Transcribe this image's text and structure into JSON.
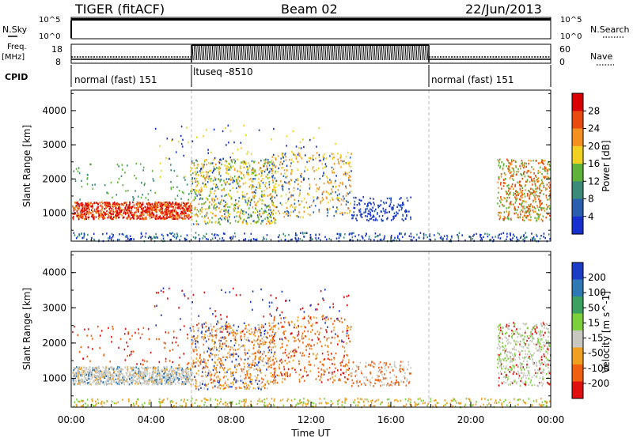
{
  "header": {
    "radar": "TIGER (fitACF)",
    "beam": "Beam 02",
    "date": "22/Jun/2013"
  },
  "top_panels": {
    "nsky_label": "N.Sky",
    "nsky_ticks": [
      "10^5",
      "10^0"
    ],
    "nsearch_label": "N.Search",
    "nsearch_ticks": [
      "10^5",
      "10^0"
    ],
    "freq_label_1": "Freq.",
    "freq_label_2": "[MHz]",
    "freq_ticks": [
      "18",
      "8"
    ],
    "nave_label": "Nave",
    "nave_ticks": [
      "60",
      "0"
    ],
    "cpid_label": "CPID",
    "cpid_segments": [
      {
        "label": "normal (fast) 151",
        "start_h": 0,
        "end_h": 6
      },
      {
        "label": "ltuseq -8510",
        "start_h": 6,
        "end_h": 18
      },
      {
        "label": "normal (fast) 151",
        "start_h": 18,
        "end_h": 24
      }
    ]
  },
  "chart_data": [
    {
      "type": "heatmap",
      "panel": "power",
      "ylabel": "Slant Range [km]",
      "yticks": [
        1000,
        2000,
        3000,
        4000
      ],
      "ylim": [
        180,
        4600
      ],
      "xlim_hours": [
        0,
        24
      ],
      "colorbar_label": "Power [dB]",
      "colorbar_ticks": [
        "4",
        "8",
        "12",
        "16",
        "20",
        "24",
        "28"
      ],
      "colorbar_colors": [
        "#1630d0",
        "#2a5fb0",
        "#3c8a78",
        "#5fb23a",
        "#f0d020",
        "#f49020",
        "#e84a10",
        "#d80000"
      ],
      "features": [
        {
          "desc_h": [
            0,
            6
          ],
          "range_km": [
            900,
            1300
          ],
          "level": "high"
        },
        {
          "desc_h": [
            6,
            10
          ],
          "range_km": [
            700,
            2600
          ],
          "level": "medium"
        },
        {
          "desc_h": [
            11,
            13.5
          ],
          "range_km": [
            1100,
            1800
          ],
          "level": "medium"
        },
        {
          "desc_h": [
            14,
            17
          ],
          "range_km": [
            800,
            1400
          ],
          "level": "low"
        },
        {
          "desc_h": [
            21.5,
            24
          ],
          "range_km": [
            800,
            2600
          ],
          "level": "high"
        }
      ]
    },
    {
      "type": "heatmap",
      "panel": "velocity",
      "ylabel": "Slant Range [km]",
      "yticks": [
        1000,
        2000,
        3000,
        4000
      ],
      "ylim": [
        180,
        4600
      ],
      "xlim_hours": [
        0,
        24
      ],
      "colorbar_label": "Velocity [m s^-1]",
      "colorbar_ticks": [
        "200",
        "100",
        "50",
        "15",
        "-15",
        "-50",
        "-100",
        "-200"
      ],
      "colorbar_colors": [
        "#1c3cc8",
        "#2e78b4",
        "#3ca060",
        "#7cd03c",
        "#c8c8c0",
        "#f0a020",
        "#f06010",
        "#e01010"
      ],
      "xticks": [
        "00:00",
        "04:00",
        "08:00",
        "12:00",
        "16:00",
        "20:00",
        "00:00"
      ],
      "xlabel": "Time UT"
    }
  ]
}
